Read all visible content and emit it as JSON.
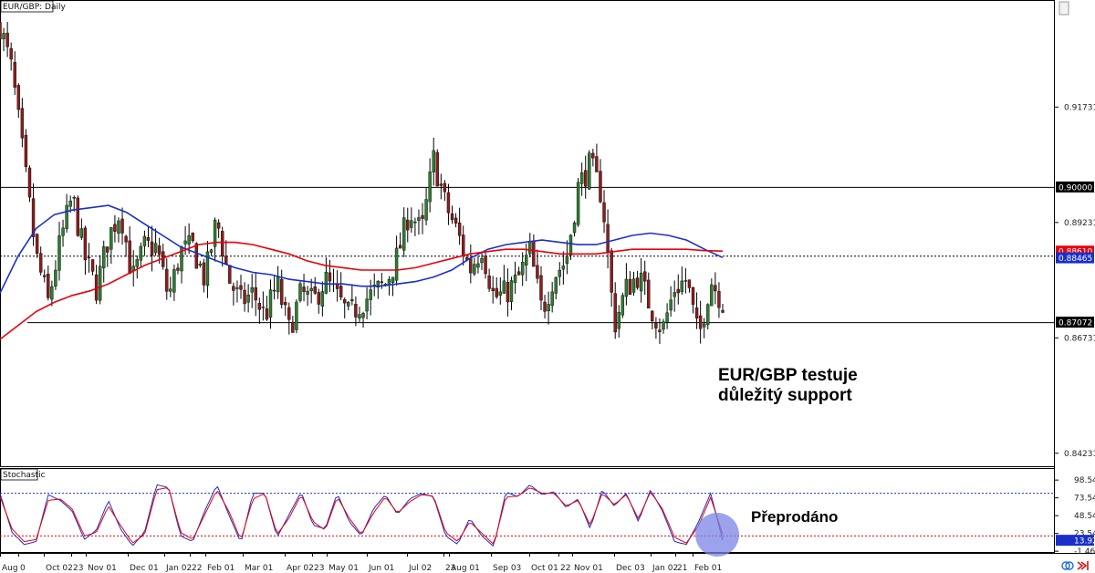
{
  "chart_data": {
    "type": "candlestick",
    "title": "EUR/GBP: Daily",
    "price_panel": {
      "ylim": [
        0.8395,
        0.9405
      ],
      "y_ticks": [
        "0.91731",
        "0.89231",
        "0.86731",
        "0.84231"
      ],
      "support_level": 0.8707,
      "resistance_level": 0.9,
      "dotted_level": 0.8851,
      "price_labels": [
        {
          "text": "0.90000",
          "value": 0.9,
          "bg": "#000000"
        },
        {
          "text": "0.88610",
          "value": 0.8861,
          "bg": "#e8000b"
        },
        {
          "text": "0.88465",
          "value": 0.88465,
          "bg": "#1a2fc9"
        },
        {
          "text": "0.87072",
          "value": 0.87072,
          "bg": "#000000"
        }
      ],
      "series": [
        {
          "name": "MA 100",
          "color": "#1a2fc9",
          "values": [
            0.877,
            0.885,
            0.891,
            0.894,
            0.895,
            0.8955,
            0.896,
            0.8945,
            0.892,
            0.8895,
            0.887,
            0.8855,
            0.884,
            0.8825,
            0.8815,
            0.881,
            0.88,
            0.8795,
            0.879,
            0.879,
            0.8785,
            0.8785,
            0.879,
            0.8795,
            0.8805,
            0.882,
            0.8845,
            0.8865,
            0.8875,
            0.888,
            0.8885,
            0.888,
            0.8875,
            0.8875,
            0.8885,
            0.8895,
            0.89,
            0.8895,
            0.8885,
            0.8865,
            0.8847
          ]
        },
        {
          "name": "MA 200",
          "color": "#e8000b",
          "values": [
            0.867,
            0.87,
            0.873,
            0.875,
            0.8765,
            0.8775,
            0.879,
            0.881,
            0.883,
            0.8845,
            0.886,
            0.8875,
            0.888,
            0.888,
            0.8875,
            0.8865,
            0.8855,
            0.884,
            0.883,
            0.8825,
            0.882,
            0.882,
            0.882,
            0.8825,
            0.8835,
            0.8845,
            0.8855,
            0.886,
            0.8865,
            0.8865,
            0.886,
            0.8855,
            0.8855,
            0.8855,
            0.886,
            0.8865,
            0.8865,
            0.8865,
            0.8865,
            0.8862,
            0.8861
          ]
        }
      ],
      "close_path": [
        0.935,
        0.925,
        0.905,
        0.885,
        0.875,
        0.888,
        0.898,
        0.885,
        0.878,
        0.889,
        0.895,
        0.88,
        0.887,
        0.887,
        0.876,
        0.886,
        0.887,
        0.88,
        0.893,
        0.88,
        0.875,
        0.877,
        0.872,
        0.879,
        0.869,
        0.877,
        0.875,
        0.88,
        0.876,
        0.872,
        0.875,
        0.877,
        0.879,
        0.885,
        0.895,
        0.89,
        0.906,
        0.896,
        0.89,
        0.882,
        0.887,
        0.876,
        0.877,
        0.88,
        0.886,
        0.873,
        0.881,
        0.884,
        0.9,
        0.905,
        0.898,
        0.87,
        0.878,
        0.881,
        0.874,
        0.869,
        0.878,
        0.88,
        0.867,
        0.88,
        0.875
      ]
    },
    "stochastic_panel": {
      "title": "Stochastic",
      "ylim": [
        0,
        100
      ],
      "y_ticks": [
        "98.54",
        "73.54",
        "48.54",
        "23.54",
        "-1.46"
      ],
      "overbought": 80,
      "oversold": 20,
      "last_value_label": "13.92",
      "series": [
        {
          "name": "%K",
          "color": "#1a2fc9",
          "values": [
            80,
            25,
            8,
            12,
            78,
            70,
            55,
            15,
            28,
            70,
            30,
            6,
            25,
            92,
            88,
            20,
            12,
            55,
            92,
            50,
            10,
            80,
            80,
            18,
            50,
            82,
            35,
            30,
            80,
            40,
            20,
            58,
            78,
            50,
            72,
            80,
            75,
            20,
            8,
            45,
            20,
            5,
            82,
            75,
            92,
            78,
            82,
            60,
            72,
            30,
            85,
            62,
            80,
            40,
            85,
            55,
            12,
            8,
            40,
            80,
            14
          ]
        },
        {
          "name": "%D",
          "color": "#e8000b",
          "values": [
            75,
            30,
            12,
            15,
            70,
            72,
            58,
            20,
            25,
            62,
            35,
            10,
            22,
            85,
            88,
            25,
            15,
            50,
            85,
            55,
            14,
            72,
            80,
            22,
            45,
            78,
            40,
            28,
            75,
            45,
            22,
            52,
            75,
            52,
            68,
            78,
            76,
            25,
            12,
            40,
            24,
            8,
            75,
            76,
            88,
            80,
            80,
            62,
            70,
            35,
            80,
            64,
            78,
            44,
            82,
            58,
            18,
            10,
            35,
            74,
            22
          ]
        }
      ]
    },
    "x_tick_labels": [
      "Aug",
      "0",
      "Oct 02",
      "23",
      "Nov 01",
      "Dec 01",
      "Jan 02",
      "22",
      "Feb 01",
      "Mar 01",
      "Apr 02",
      "23",
      "May 01",
      "Jun 01",
      "Jul 02",
      "23",
      "Aug 01",
      "Sep 03",
      "Oct 01",
      "22",
      "Nov 01",
      "Dec 03",
      "Jan 02",
      "21",
      "Feb 01"
    ],
    "annotations": {
      "support_note_line1": "EUR/GBP testuje",
      "support_note_line2": "důležitý support",
      "oversold_note": "Přeprodáno"
    },
    "colors": {
      "up": "#2e7d32",
      "down": "#8b1d1d",
      "wick": "#000000",
      "grid": "#000000",
      "oversold_circle": "#7b84e6"
    }
  }
}
